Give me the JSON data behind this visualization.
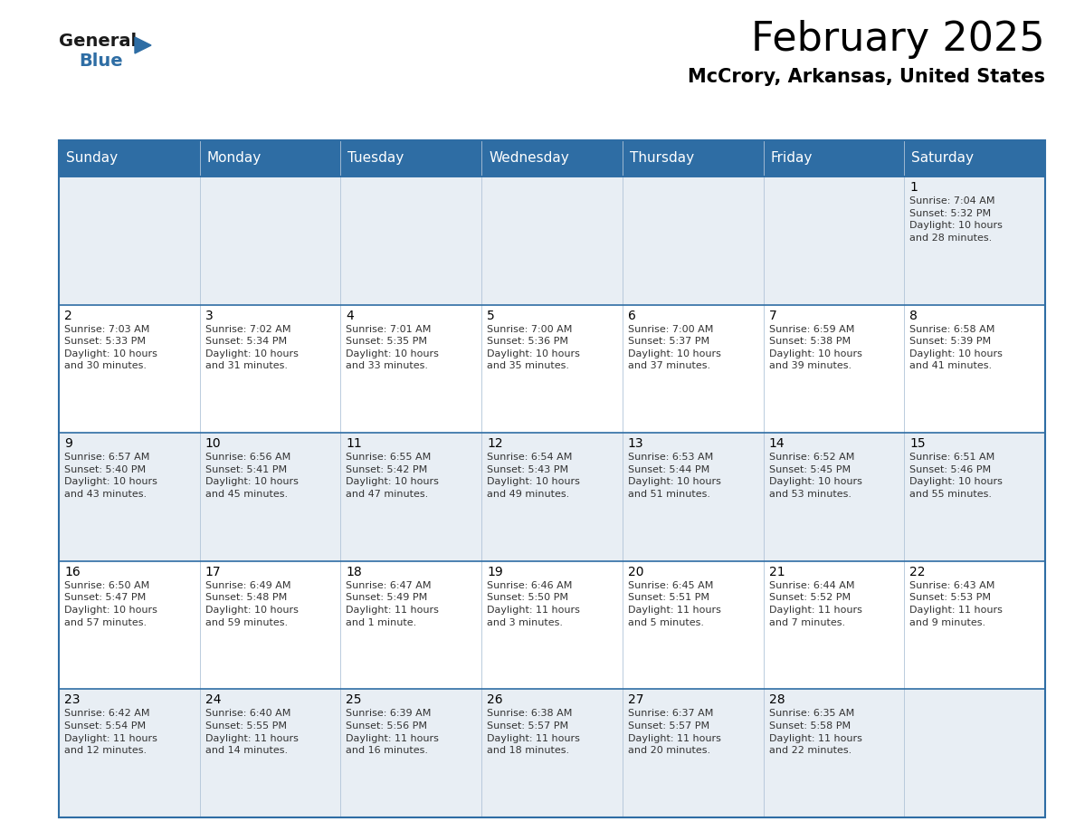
{
  "title": "February 2025",
  "subtitle": "McCrory, Arkansas, United States",
  "header_bg": "#2e6da4",
  "header_text": "#ffffff",
  "cell_bg_odd": "#e8eef4",
  "cell_bg_even": "#ffffff",
  "border_color": "#2e6da4",
  "border_light": "#adc5d8",
  "day_headers": [
    "Sunday",
    "Monday",
    "Tuesday",
    "Wednesday",
    "Thursday",
    "Friday",
    "Saturday"
  ],
  "weeks": [
    [
      {
        "day": null,
        "text": ""
      },
      {
        "day": null,
        "text": ""
      },
      {
        "day": null,
        "text": ""
      },
      {
        "day": null,
        "text": ""
      },
      {
        "day": null,
        "text": ""
      },
      {
        "day": null,
        "text": ""
      },
      {
        "day": 1,
        "text": "Sunrise: 7:04 AM\nSunset: 5:32 PM\nDaylight: 10 hours\nand 28 minutes."
      }
    ],
    [
      {
        "day": 2,
        "text": "Sunrise: 7:03 AM\nSunset: 5:33 PM\nDaylight: 10 hours\nand 30 minutes."
      },
      {
        "day": 3,
        "text": "Sunrise: 7:02 AM\nSunset: 5:34 PM\nDaylight: 10 hours\nand 31 minutes."
      },
      {
        "day": 4,
        "text": "Sunrise: 7:01 AM\nSunset: 5:35 PM\nDaylight: 10 hours\nand 33 minutes."
      },
      {
        "day": 5,
        "text": "Sunrise: 7:00 AM\nSunset: 5:36 PM\nDaylight: 10 hours\nand 35 minutes."
      },
      {
        "day": 6,
        "text": "Sunrise: 7:00 AM\nSunset: 5:37 PM\nDaylight: 10 hours\nand 37 minutes."
      },
      {
        "day": 7,
        "text": "Sunrise: 6:59 AM\nSunset: 5:38 PM\nDaylight: 10 hours\nand 39 minutes."
      },
      {
        "day": 8,
        "text": "Sunrise: 6:58 AM\nSunset: 5:39 PM\nDaylight: 10 hours\nand 41 minutes."
      }
    ],
    [
      {
        "day": 9,
        "text": "Sunrise: 6:57 AM\nSunset: 5:40 PM\nDaylight: 10 hours\nand 43 minutes."
      },
      {
        "day": 10,
        "text": "Sunrise: 6:56 AM\nSunset: 5:41 PM\nDaylight: 10 hours\nand 45 minutes."
      },
      {
        "day": 11,
        "text": "Sunrise: 6:55 AM\nSunset: 5:42 PM\nDaylight: 10 hours\nand 47 minutes."
      },
      {
        "day": 12,
        "text": "Sunrise: 6:54 AM\nSunset: 5:43 PM\nDaylight: 10 hours\nand 49 minutes."
      },
      {
        "day": 13,
        "text": "Sunrise: 6:53 AM\nSunset: 5:44 PM\nDaylight: 10 hours\nand 51 minutes."
      },
      {
        "day": 14,
        "text": "Sunrise: 6:52 AM\nSunset: 5:45 PM\nDaylight: 10 hours\nand 53 minutes."
      },
      {
        "day": 15,
        "text": "Sunrise: 6:51 AM\nSunset: 5:46 PM\nDaylight: 10 hours\nand 55 minutes."
      }
    ],
    [
      {
        "day": 16,
        "text": "Sunrise: 6:50 AM\nSunset: 5:47 PM\nDaylight: 10 hours\nand 57 minutes."
      },
      {
        "day": 17,
        "text": "Sunrise: 6:49 AM\nSunset: 5:48 PM\nDaylight: 10 hours\nand 59 minutes."
      },
      {
        "day": 18,
        "text": "Sunrise: 6:47 AM\nSunset: 5:49 PM\nDaylight: 11 hours\nand 1 minute."
      },
      {
        "day": 19,
        "text": "Sunrise: 6:46 AM\nSunset: 5:50 PM\nDaylight: 11 hours\nand 3 minutes."
      },
      {
        "day": 20,
        "text": "Sunrise: 6:45 AM\nSunset: 5:51 PM\nDaylight: 11 hours\nand 5 minutes."
      },
      {
        "day": 21,
        "text": "Sunrise: 6:44 AM\nSunset: 5:52 PM\nDaylight: 11 hours\nand 7 minutes."
      },
      {
        "day": 22,
        "text": "Sunrise: 6:43 AM\nSunset: 5:53 PM\nDaylight: 11 hours\nand 9 minutes."
      }
    ],
    [
      {
        "day": 23,
        "text": "Sunrise: 6:42 AM\nSunset: 5:54 PM\nDaylight: 11 hours\nand 12 minutes."
      },
      {
        "day": 24,
        "text": "Sunrise: 6:40 AM\nSunset: 5:55 PM\nDaylight: 11 hours\nand 14 minutes."
      },
      {
        "day": 25,
        "text": "Sunrise: 6:39 AM\nSunset: 5:56 PM\nDaylight: 11 hours\nand 16 minutes."
      },
      {
        "day": 26,
        "text": "Sunrise: 6:38 AM\nSunset: 5:57 PM\nDaylight: 11 hours\nand 18 minutes."
      },
      {
        "day": 27,
        "text": "Sunrise: 6:37 AM\nSunset: 5:57 PM\nDaylight: 11 hours\nand 20 minutes."
      },
      {
        "day": 28,
        "text": "Sunrise: 6:35 AM\nSunset: 5:58 PM\nDaylight: 11 hours\nand 22 minutes."
      },
      {
        "day": null,
        "text": ""
      }
    ]
  ],
  "logo_general_color": "#1a1a1a",
  "logo_blue_color": "#2e6da4",
  "logo_triangle_color": "#2e6da4",
  "title_fontsize": 32,
  "subtitle_fontsize": 15,
  "header_fontsize": 11,
  "day_num_fontsize": 10,
  "cell_text_fontsize": 8
}
